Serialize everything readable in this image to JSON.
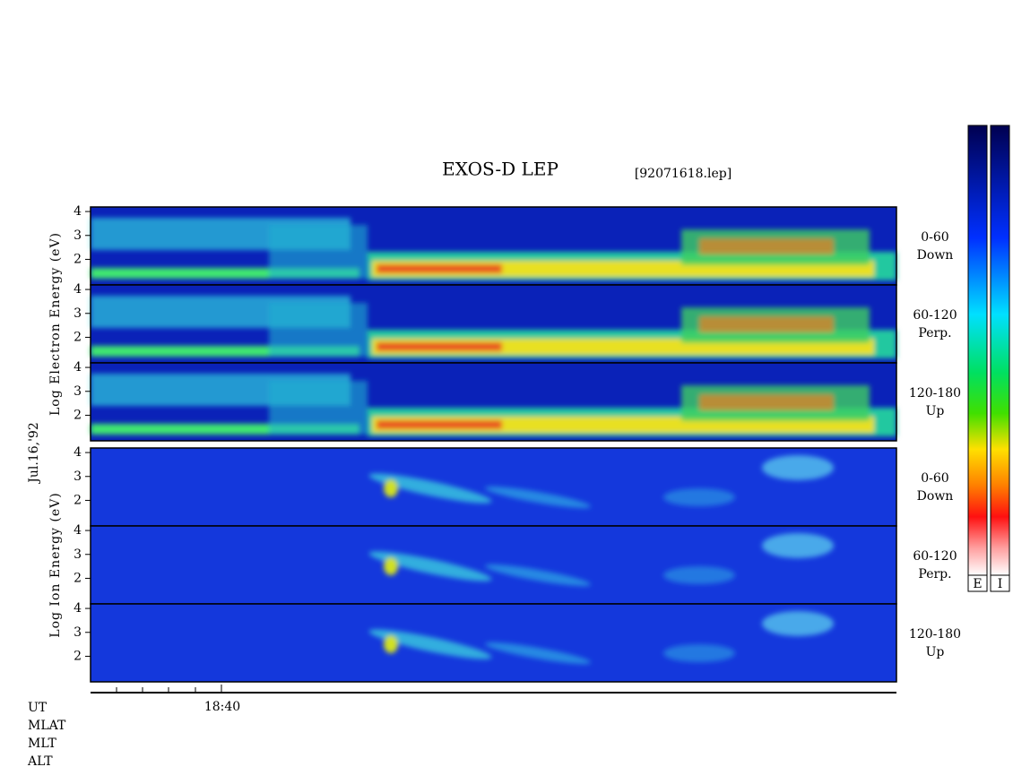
{
  "title": "EXOS-D LEP",
  "file": "[92071618.lep]",
  "date": "Jul.16,'92",
  "chart_data": {
    "type": "spectrogram",
    "ylim": [
      0.93,
      4.19
    ],
    "yticks": [
      2,
      3,
      4
    ],
    "groups": [
      {
        "label": "Log Electron Energy (eV)",
        "kind": "electron",
        "panels": [
          [
            "0-60",
            "Down"
          ],
          [
            "60-120",
            "Perp."
          ],
          [
            "120-180",
            "Up"
          ]
        ]
      },
      {
        "label": "Log Ion Energy (eV)",
        "kind": "ion",
        "panels": [
          [
            "0-60",
            "Down"
          ],
          [
            "60-120",
            "Perp."
          ],
          [
            "120-180",
            "Up"
          ]
        ]
      }
    ],
    "xticks": [
      "18:40"
    ]
  },
  "footer_labels": [
    "UT",
    "MLAT",
    "MLT",
    "ALT"
  ],
  "colorbars": [
    "E",
    "I"
  ]
}
